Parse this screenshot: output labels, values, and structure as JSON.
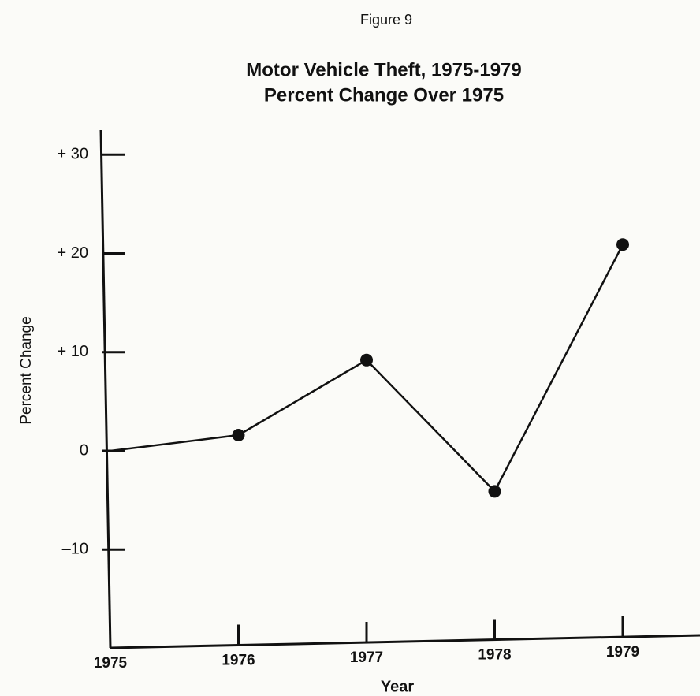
{
  "chart_data": {
    "type": "line",
    "figure_label": "Figure 9",
    "title": "Motor Vehicle Theft, 1975-1979",
    "subtitle": "Percent Change Over 1975",
    "x_label": "Year",
    "y_label": "Percent Change",
    "categories": [
      "1975",
      "1976",
      "1977",
      "1978",
      "1979"
    ],
    "values": [
      0,
      1.6,
      9.2,
      -4.1,
      20.9
    ],
    "color": "#111111",
    "ylim": [
      -19.8,
      32.5
    ],
    "yticks": [
      {
        "value": 30,
        "label": "+ 30"
      },
      {
        "value": 20,
        "label": "+ 20"
      },
      {
        "value": 10,
        "label": "+ 10"
      },
      0,
      {
        "value": -10,
        "label": "–10"
      }
    ],
    "grid": false
  }
}
